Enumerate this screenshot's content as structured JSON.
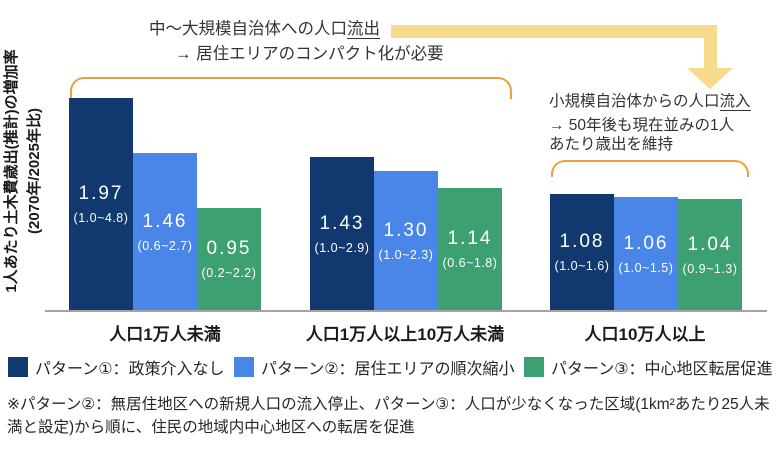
{
  "y_axis": {
    "label_line1": "1人あたり土木費歳出(推計)の増加率",
    "label_line2": "(2070年/2025年比)"
  },
  "annotations": {
    "top": {
      "line1_prefix": "中～大規模自治体への人口",
      "line1_underline": "流出",
      "line2": "→ 居住エリアのコンパクト化が必要"
    },
    "right": {
      "line1_prefix": "小規模自治体からの人口",
      "line1_underline": "流入",
      "line2": "→ 50年後も現在並みの1人",
      "line3": "あたり歳出を維持"
    }
  },
  "chart_data": {
    "type": "bar",
    "categories": [
      "人口1万人未満",
      "人口1万人以上10万人未満",
      "人口10万人以上"
    ],
    "series": [
      {
        "name": "パターン①：政策介入なし",
        "color": "#11386F",
        "values": [
          1.97,
          1.43,
          1.08
        ],
        "labels": [
          "1.97",
          "1.43",
          "1.08"
        ],
        "ranges": [
          "(1.0~4.8)",
          "(1.0~2.9)",
          "(1.0~1.6)"
        ]
      },
      {
        "name": "パターン②：居住エリアの順次縮小",
        "color": "#4A86E8",
        "values": [
          1.46,
          1.3,
          1.06
        ],
        "labels": [
          "1.46",
          "1.30",
          "1.06"
        ],
        "ranges": [
          "(0.6~2.7)",
          "(1.0~2.3)",
          "(1.0~1.5)"
        ]
      },
      {
        "name": "パターン③：中心地区転居促進",
        "color": "#3CA070",
        "values": [
          0.95,
          1.14,
          1.04
        ],
        "labels": [
          "0.95",
          "1.14",
          "1.04"
        ],
        "ranges": [
          "(0.2~2.2)",
          "(0.6~1.8)",
          "(0.9~1.3)"
        ]
      }
    ],
    "ylabel": "1人あたり土木費歳出(推計)の増加率（2070年/2025年比）",
    "xlabel": "",
    "title": "",
    "ylim": [
      0,
      2.0
    ],
    "grid": false,
    "legend_position": "bottom",
    "annotation_colors": {
      "arrow": "#F8DA8C",
      "bracket": "#E8A13B"
    },
    "axis_line_color": "#A3A3A3"
  },
  "footnote": "※パターン②：無居住地区への新規人口の流入停止、パターン③：人口が少なくなった区域(1km²あたり25人未満と設定)から順に、住民の地域内中心地区への転居を促進"
}
